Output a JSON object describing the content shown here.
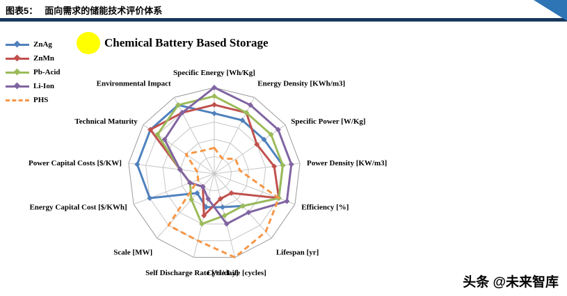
{
  "header": {
    "figure_label": "图表5：",
    "figure_title": "面向需求的储能技术评价体系"
  },
  "watermark": "头条 @未来智库",
  "decor": {
    "rule_color": "#17375E",
    "corner_color": "#2E75B6",
    "highlight_color": "#FFFF00"
  },
  "chart_data": {
    "type": "radar",
    "title": "Chemical Battery Based Storage",
    "legend_position": "top-left",
    "levels": 5,
    "value_range": [
      0,
      10
    ],
    "grid": true,
    "axes": [
      "Specific Energy [Wh/Kg]",
      "Energy Density [KWh/m3]",
      "Specific Power [W/Kg]",
      "Power Density [KW/m3]",
      "Efficiency [%]",
      "Lifespan [yr]",
      "Cycle Life [cycles]",
      "Self Discharge Rate [%/day]",
      "Scale [MW]",
      "Energy Capital Cost [$/KWh]",
      "Power Capital Costs [$/KW]",
      "Technical Maturity",
      "Environmental Impact"
    ],
    "series": [
      {
        "name": "ZnAg",
        "color": "#4F81BD",
        "dash": false,
        "values": [
          7,
          7,
          7,
          8,
          8,
          5,
          4,
          4,
          3,
          8,
          9,
          9,
          9
        ]
      },
      {
        "name": "ZnMn",
        "color": "#C0504D",
        "dash": false,
        "values": [
          8,
          8,
          6,
          7,
          8,
          3,
          3,
          5,
          2,
          3,
          4,
          9,
          8
        ]
      },
      {
        "name": "Pb-Acid",
        "color": "#9BBB59",
        "dash": false,
        "values": [
          9,
          8,
          8,
          8,
          8,
          5,
          5,
          6,
          4,
          3,
          4,
          8,
          9
        ]
      },
      {
        "name": "Li-Ion",
        "color": "#8064A2",
        "dash": false,
        "values": [
          10,
          9,
          9,
          9,
          9,
          6,
          6,
          3,
          2,
          3,
          4,
          7,
          8
        ]
      },
      {
        "name": "PHS",
        "color": "#F79646",
        "dash": true,
        "values": [
          3,
          2,
          3,
          3,
          8,
          9,
          10,
          8,
          8,
          2,
          2,
          4,
          3
        ]
      }
    ]
  }
}
